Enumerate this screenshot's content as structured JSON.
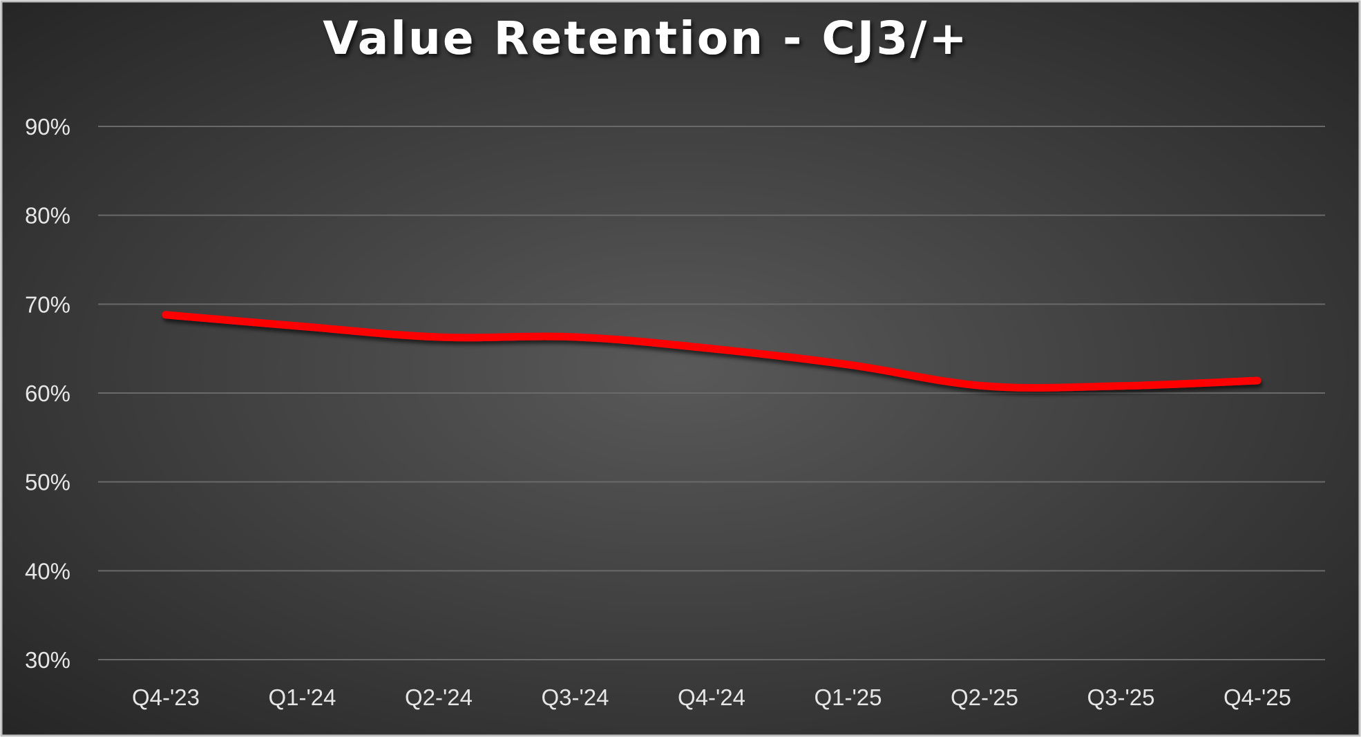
{
  "chart_data": {
    "type": "line",
    "title": "Value Retention - CJ3/+",
    "xlabel": "",
    "ylabel": "",
    "categories": [
      "Q4-'23",
      "Q1-'24",
      "Q2-'24",
      "Q3-'24",
      "Q4-'24",
      "Q1-'25",
      "Q2-'25",
      "Q3-'25",
      "Q4-'25"
    ],
    "series": [
      {
        "values": [
          68.8,
          67.5,
          66.3,
          66.3,
          65.0,
          63.2,
          60.8,
          60.8,
          61.4
        ],
        "color": "#ff0000"
      }
    ],
    "ylim": [
      30,
      90
    ],
    "yticks": [
      90,
      80,
      70,
      60,
      50,
      40,
      30
    ],
    "ytick_labels": [
      "90%",
      "80%",
      "70%",
      "60%",
      "50%",
      "40%",
      "30%"
    ],
    "grid": true,
    "legend": "none",
    "background": "dark-radial-gradient",
    "colors": {
      "background_center": "#595959",
      "background_edge": "#262626",
      "gridline": "#6a6a6a",
      "text": "#e6e6e6",
      "line": "#ff0000"
    }
  }
}
